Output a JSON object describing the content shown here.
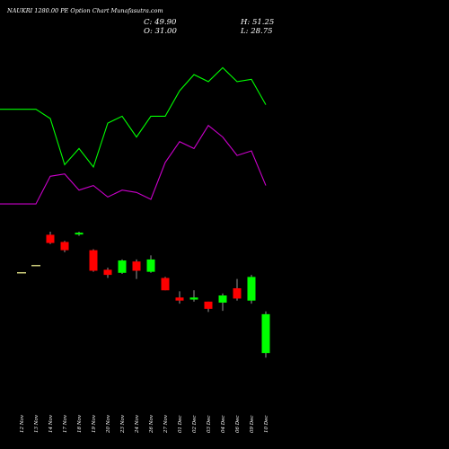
{
  "header": {
    "title": "NAUKRI 1280.00  PE Option  Chart  Munafasutra.com",
    "close": "C: 49.90",
    "open": "O: 31.00",
    "high": "H: 51.25",
    "low": "L: 28.75"
  },
  "chart_data": {
    "type": "candlestick",
    "categories": [
      "12 Nov",
      "13 Nov",
      "14 Nov",
      "17 Nov",
      "18 Nov",
      "19 Nov",
      "20 Nov",
      "23 Nov",
      "24 Nov",
      "26 Nov",
      "27 Nov",
      "01 Dec",
      "02 Dec",
      "03 Dec",
      "04 Dec",
      "06 Dec",
      "09 Dec",
      "10 Dec"
    ],
    "candles": [
      {
        "o": 70.0,
        "h": 70.0,
        "l": 70.0,
        "c": 70.0
      },
      {
        "o": 73.5,
        "h": 73.5,
        "l": 73.5,
        "c": 73.5
      },
      {
        "o": 88.5,
        "h": 90.0,
        "l": 84.0,
        "c": 84.5
      },
      {
        "o": 85.0,
        "h": 85.5,
        "l": 80.0,
        "c": 81.0
      },
      {
        "o": 89.0,
        "h": 90.0,
        "l": 88.0,
        "c": 89.5
      },
      {
        "o": 81.0,
        "h": 81.5,
        "l": 70.5,
        "c": 71.0
      },
      {
        "o": 71.5,
        "h": 72.5,
        "l": 67.5,
        "c": 69.0
      },
      {
        "o": 70.0,
        "h": 76.5,
        "l": 69.5,
        "c": 76.0
      },
      {
        "o": 75.5,
        "h": 76.5,
        "l": 67.0,
        "c": 71.0
      },
      {
        "o": 70.5,
        "h": 78.5,
        "l": 70.0,
        "c": 76.5
      },
      {
        "o": 67.5,
        "h": 68.0,
        "l": 61.5,
        "c": 61.5
      },
      {
        "o": 58.0,
        "h": 61.0,
        "l": 55.0,
        "c": 56.5
      },
      {
        "o": 57.0,
        "h": 61.5,
        "l": 56.0,
        "c": 58.0
      },
      {
        "o": 56.0,
        "h": 56.0,
        "l": 51.0,
        "c": 52.5
      },
      {
        "o": 55.5,
        "h": 60.0,
        "l": 51.5,
        "c": 59.0
      },
      {
        "o": 62.5,
        "h": 67.0,
        "l": 56.5,
        "c": 57.5
      },
      {
        "o": 56.5,
        "h": 69.0,
        "l": 55.0,
        "c": 68.0
      },
      {
        "o": 31.0,
        "h": 51.25,
        "l": 28.75,
        "c": 49.9
      }
    ],
    "overlay_green": [
      116,
      116,
      112,
      92,
      99,
      91,
      110,
      113,
      104,
      113,
      113,
      124,
      131,
      128,
      134,
      128,
      129,
      118
    ],
    "overlay_purple": [
      75,
      75,
      87,
      88,
      81,
      83,
      78,
      81,
      80,
      77,
      93,
      102,
      99,
      109,
      104,
      96,
      98,
      83
    ],
    "colors": {
      "up": "#00ff00",
      "down": "#ff0000",
      "doji": "#ffff99",
      "line_green": "#00ff00",
      "line_purple": "#cc00cc",
      "background": "#000000",
      "text": "#ffffff"
    }
  }
}
